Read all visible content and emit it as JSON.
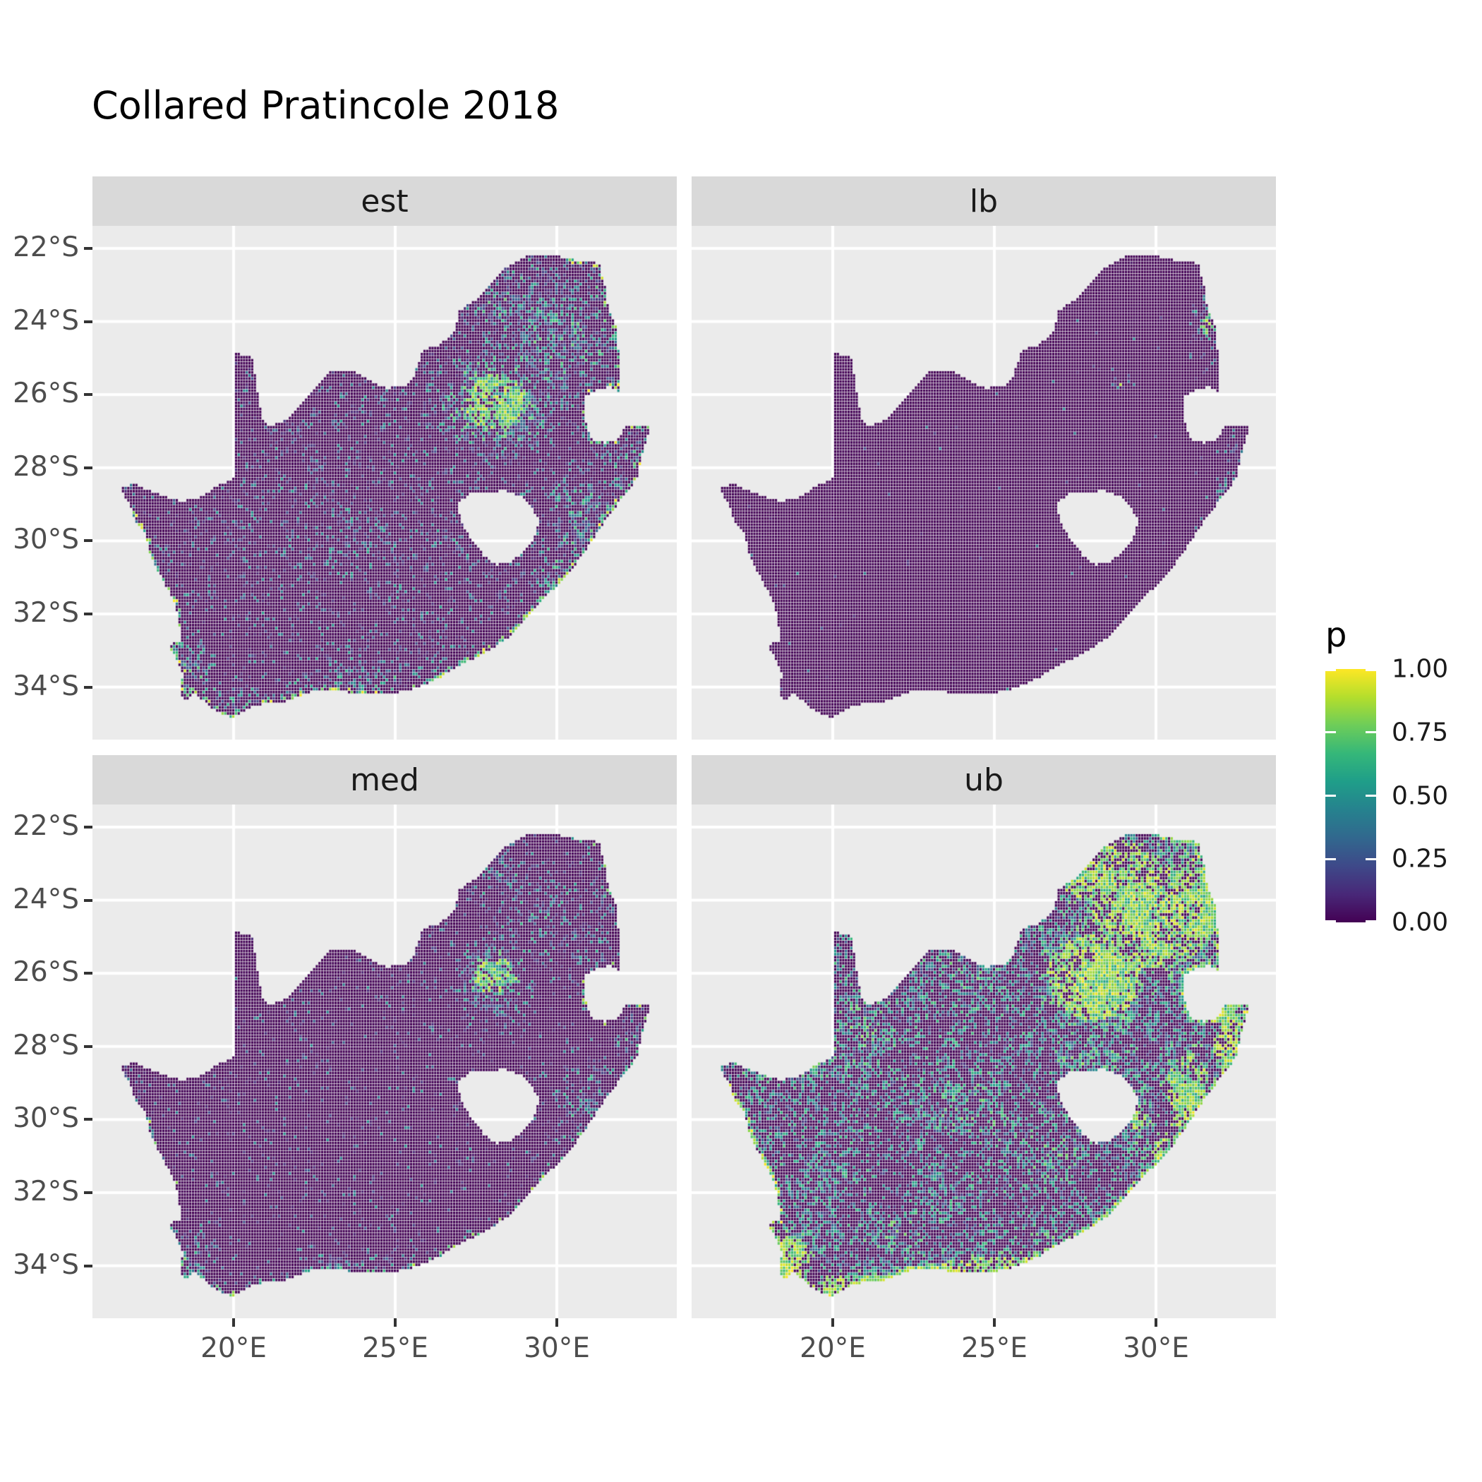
{
  "title": "Collared Pratincole 2018",
  "facets": [
    {
      "label": "est"
    },
    {
      "label": "lb"
    },
    {
      "label": "med"
    },
    {
      "label": "ub"
    }
  ],
  "axis": {
    "x": {
      "labels": [
        "20°E",
        "25°E",
        "30°E"
      ],
      "lons": [
        20,
        25,
        30
      ]
    },
    "y": {
      "labels": [
        "22°S",
        "24°S",
        "26°S",
        "28°S",
        "30°S",
        "32°S",
        "34°S"
      ],
      "lats": [
        -22,
        -24,
        -26,
        -28,
        -30,
        -32,
        -34
      ]
    }
  },
  "legend": {
    "title": "p",
    "labels": [
      "1.00",
      "0.75",
      "0.50",
      "0.25",
      "0.00"
    ],
    "values": [
      1.0,
      0.75,
      0.5,
      0.25,
      0.0
    ]
  },
  "colors": {
    "background": "#FFFFFF",
    "panel_bg": "#EBEBEB",
    "strip_bg": "#D9D9D9",
    "grid": "#FFFFFF",
    "axis_text": "#4D4D4D",
    "tick_mark": "#333333",
    "text": "#1A1A1A",
    "raster_base": "#440154"
  },
  "chart_data": {
    "type": "heatmap",
    "title": "Collared Pratincole 2018",
    "subtitle": "",
    "facet_labels": [
      "est",
      "lb",
      "med",
      "ub"
    ],
    "legend_variable": "p",
    "value_range": [
      0.0,
      1.0
    ],
    "legend_ticks": [
      0.0,
      0.25,
      0.5,
      0.75,
      1.0
    ],
    "x_axis_ticks_lon": [
      20,
      25,
      30
    ],
    "y_axis_ticks_lat": [
      -22,
      -24,
      -26,
      -28,
      -30,
      -32,
      -34
    ],
    "lon_range": [
      16.45,
      32.95
    ],
    "lat_range": [
      -34.87,
      -22.1
    ],
    "grid": "major-only-white",
    "legend_position": "right",
    "viridis_stops": [
      "#440154",
      "#482878",
      "#3e4989",
      "#31688e",
      "#26828e",
      "#1f9e89",
      "#35b779",
      "#6dcd59",
      "#b4de2c",
      "#fde725"
    ],
    "cell_size_deg": 0.0833,
    "map_outline_lonlat": [
      [
        16.45,
        -28.58
      ],
      [
        16.78,
        -28.95
      ],
      [
        16.92,
        -29.4
      ],
      [
        17.25,
        -29.8
      ],
      [
        17.4,
        -30.3
      ],
      [
        17.65,
        -30.8
      ],
      [
        17.95,
        -31.3
      ],
      [
        18.2,
        -31.8
      ],
      [
        18.32,
        -32.3
      ],
      [
        18.35,
        -32.75
      ],
      [
        17.98,
        -32.85
      ],
      [
        18.25,
        -33.25
      ],
      [
        18.45,
        -33.65
      ],
      [
        18.33,
        -34.05
      ],
      [
        18.48,
        -34.38
      ],
      [
        18.82,
        -34.15
      ],
      [
        19.12,
        -34.42
      ],
      [
        19.45,
        -34.65
      ],
      [
        19.95,
        -34.83
      ],
      [
        20.4,
        -34.6
      ],
      [
        20.9,
        -34.45
      ],
      [
        21.55,
        -34.42
      ],
      [
        22.15,
        -34.2
      ],
      [
        22.7,
        -34.05
      ],
      [
        23.4,
        -34.12
      ],
      [
        24.2,
        -34.22
      ],
      [
        24.9,
        -34.18
      ],
      [
        25.65,
        -34.02
      ],
      [
        26.3,
        -33.78
      ],
      [
        27.05,
        -33.38
      ],
      [
        27.9,
        -33.02
      ],
      [
        28.55,
        -32.6
      ],
      [
        29.15,
        -32.05
      ],
      [
        29.75,
        -31.45
      ],
      [
        30.35,
        -30.9
      ],
      [
        30.9,
        -30.25
      ],
      [
        31.35,
        -29.62
      ],
      [
        31.85,
        -29.02
      ],
      [
        32.25,
        -28.62
      ],
      [
        32.5,
        -28.2
      ],
      [
        32.62,
        -27.7
      ],
      [
        32.78,
        -27.2
      ],
      [
        32.9,
        -26.86
      ],
      [
        32.08,
        -26.88
      ],
      [
        31.96,
        -27.18
      ],
      [
        31.5,
        -27.32
      ],
      [
        31.06,
        -27.2
      ],
      [
        30.92,
        -26.85
      ],
      [
        30.82,
        -26.45
      ],
      [
        30.86,
        -26.08
      ],
      [
        31.15,
        -25.9
      ],
      [
        31.6,
        -25.78
      ],
      [
        31.96,
        -25.96
      ],
      [
        31.98,
        -25.38
      ],
      [
        31.9,
        -24.75
      ],
      [
        31.85,
        -24.15
      ],
      [
        31.58,
        -23.58
      ],
      [
        31.48,
        -23.0
      ],
      [
        31.3,
        -22.4
      ],
      [
        30.5,
        -22.3
      ],
      [
        29.65,
        -22.15
      ],
      [
        29.0,
        -22.22
      ],
      [
        28.3,
        -22.6
      ],
      [
        27.95,
        -23.0
      ],
      [
        27.5,
        -23.4
      ],
      [
        26.95,
        -23.72
      ],
      [
        26.85,
        -24.28
      ],
      [
        26.4,
        -24.62
      ],
      [
        25.85,
        -24.78
      ],
      [
        25.58,
        -25.5
      ],
      [
        25.33,
        -25.77
      ],
      [
        24.7,
        -25.82
      ],
      [
        24.2,
        -25.62
      ],
      [
        23.65,
        -25.32
      ],
      [
        23.0,
        -25.32
      ],
      [
        22.55,
        -25.78
      ],
      [
        22.1,
        -26.28
      ],
      [
        21.68,
        -26.68
      ],
      [
        21.1,
        -26.87
      ],
      [
        20.9,
        -26.7
      ],
      [
        20.76,
        -26.1
      ],
      [
        20.65,
        -25.4
      ],
      [
        20.55,
        -24.95
      ],
      [
        20.0,
        -24.85
      ],
      [
        20.0,
        -28.28
      ],
      [
        19.45,
        -28.52
      ],
      [
        18.9,
        -28.86
      ],
      [
        18.35,
        -28.9
      ],
      [
        17.85,
        -28.77
      ],
      [
        17.35,
        -28.62
      ],
      [
        16.9,
        -28.42
      ]
    ],
    "lesotho_hole_lonlat": [
      [
        26.98,
        -28.95
      ],
      [
        27.35,
        -28.68
      ],
      [
        27.85,
        -28.68
      ],
      [
        28.4,
        -28.62
      ],
      [
        28.9,
        -28.78
      ],
      [
        29.25,
        -29.1
      ],
      [
        29.45,
        -29.45
      ],
      [
        29.33,
        -29.87
      ],
      [
        29.08,
        -30.2
      ],
      [
        28.62,
        -30.56
      ],
      [
        28.12,
        -30.66
      ],
      [
        27.75,
        -30.42
      ],
      [
        27.45,
        -30.05
      ],
      [
        27.1,
        -29.62
      ],
      [
        26.98,
        -29.25
      ]
    ],
    "fields": {
      "est": {
        "seed": 11,
        "base": 0.115,
        "gamma": 1.5,
        "vmin": 0.07,
        "coast": 0.5,
        "cMin": 0.3,
        "cAmp": 0.7,
        "fHot": 0.62,
        "hotMin": 0.45,
        "blobs": [
          [
            28.05,
            -26.2,
            1.15,
            0.95,
            0.85
          ],
          [
            29.9,
            -24.5,
            1.9,
            1.35,
            0.5
          ],
          [
            28.5,
            -23.3,
            1.6,
            0.9,
            0.45
          ],
          [
            31.4,
            -23.6,
            1.0,
            1.0,
            0.5
          ],
          [
            30.9,
            -29.7,
            0.85,
            1.3,
            0.5
          ],
          [
            32.3,
            -27.9,
            0.55,
            1.1,
            0.5
          ],
          [
            30.2,
            -30.9,
            0.75,
            0.85,
            0.45
          ],
          [
            18.55,
            -33.9,
            0.65,
            0.75,
            0.55
          ],
          [
            25.0,
            -33.95,
            2.6,
            0.45,
            0.4
          ],
          [
            20.6,
            -34.5,
            1.6,
            0.4,
            0.5
          ],
          [
            27.5,
            -30.2,
            4.0,
            3.0,
            0.16
          ],
          [
            23.7,
            -29.9,
            1.4,
            1.1,
            0.22
          ],
          [
            22.3,
            -28.4,
            1.3,
            1.0,
            0.2
          ]
        ]
      },
      "lb": {
        "seed": 23,
        "base": 0.004,
        "gamma": 2.2,
        "vmin": 0.05,
        "coast": 0.02,
        "cMin": 0.1,
        "cAmp": 0.4,
        "fHot": 0.45,
        "hotMin": 0.5,
        "blobs": [
          [
            31.55,
            -24.2,
            0.3,
            0.55,
            0.55
          ],
          [
            28.9,
            -25.6,
            0.18,
            0.18,
            0.6
          ],
          [
            32.3,
            -28.9,
            0.3,
            0.75,
            0.5
          ],
          [
            32.7,
            -23.8,
            0.3,
            0.9,
            0.35
          ],
          [
            32.4,
            -27.6,
            0.2,
            0.3,
            0.4
          ]
        ]
      },
      "med": {
        "seed": 37,
        "base": 0.055,
        "gamma": 1.8,
        "vmin": 0.06,
        "coast": 0.22,
        "cMin": 0.25,
        "cAmp": 0.65,
        "fHot": 0.5,
        "hotMin": 0.4,
        "blobs": [
          [
            28.1,
            -26.1,
            0.9,
            0.75,
            0.65
          ],
          [
            29.9,
            -24.5,
            1.9,
            1.3,
            0.33
          ],
          [
            28.4,
            -23.3,
            1.5,
            0.9,
            0.3
          ],
          [
            31.4,
            -23.7,
            0.9,
            0.9,
            0.32
          ],
          [
            31.0,
            -29.6,
            0.75,
            1.2,
            0.38
          ],
          [
            32.3,
            -27.9,
            0.5,
            1.0,
            0.38
          ],
          [
            18.5,
            -34.0,
            0.6,
            0.7,
            0.4
          ],
          [
            25.0,
            -34.1,
            2.5,
            0.4,
            0.3
          ],
          [
            30.3,
            -30.9,
            0.6,
            0.7,
            0.35
          ]
        ]
      },
      "ub": {
        "seed": 51,
        "base": 0.32,
        "gamma": 0.85,
        "vmin": 0.1,
        "coast": 0.88,
        "cMin": 0.5,
        "cAmp": 0.5,
        "fHot": 0.6,
        "hotMin": 0.55,
        "blobs": [
          [
            28.1,
            -26.1,
            1.45,
            1.15,
            1.0
          ],
          [
            29.9,
            -24.4,
            2.2,
            1.6,
            0.9
          ],
          [
            28.5,
            -23.2,
            1.9,
            1.05,
            0.85
          ],
          [
            31.5,
            -23.7,
            1.2,
            1.2,
            0.85
          ],
          [
            31.0,
            -29.4,
            0.95,
            1.5,
            0.8
          ],
          [
            32.3,
            -27.9,
            0.65,
            1.2,
            0.85
          ],
          [
            30.3,
            -30.9,
            0.85,
            0.95,
            0.7
          ],
          [
            18.6,
            -33.95,
            0.8,
            0.85,
            0.9
          ],
          [
            25.2,
            -34.1,
            3.0,
            0.5,
            0.75
          ],
          [
            20.8,
            -27.6,
            1.4,
            1.2,
            0.55
          ],
          [
            24.3,
            -29.7,
            1.7,
            1.3,
            0.5
          ],
          [
            18.7,
            -28.6,
            1.7,
            0.4,
            0.6
          ],
          [
            21.9,
            -33.1,
            1.3,
            0.9,
            0.5
          ],
          [
            26.8,
            -30.9,
            1.4,
            1.1,
            0.5
          ],
          [
            24.0,
            -25.9,
            1.6,
            0.8,
            0.5
          ],
          [
            28.0,
            -28.3,
            1.4,
            0.55,
            0.6
          ],
          [
            29.4,
            -29.9,
            0.7,
            1.0,
            0.65
          ],
          [
            21.0,
            -34.6,
            2.0,
            0.5,
            0.8
          ],
          [
            27.0,
            -33.6,
            1.6,
            0.7,
            0.6
          ]
        ]
      }
    }
  }
}
